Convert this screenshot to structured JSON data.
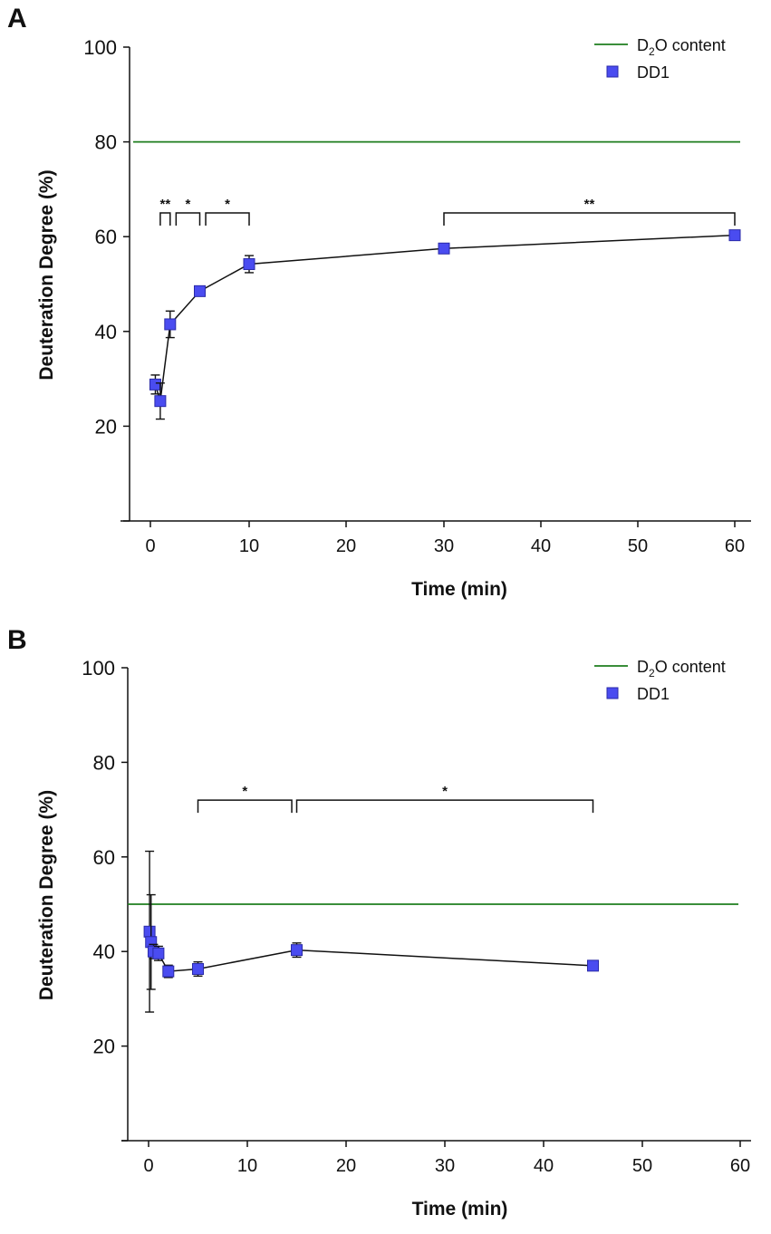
{
  "chart_data": [
    {
      "panel_label": "A",
      "type": "scatter",
      "title": "",
      "xlabel": "Time (min)",
      "ylabel": "Deuteration Degree (%)",
      "x_ticks": [
        "0",
        "10",
        "20",
        "30",
        "40",
        "50",
        "60"
      ],
      "y_ticks": [
        "20",
        "40",
        "60",
        "80",
        "100"
      ],
      "ylim": [
        0,
        100
      ],
      "reference_line": {
        "name": "D2O content",
        "legend_label_main": "D",
        "legend_label_sub": "2",
        "legend_label_rest": "O content",
        "y": 80,
        "color": "#1e7e1e"
      },
      "series": [
        {
          "name": "DD1",
          "color": "#4a4cf0",
          "points": [
            {
              "x": 0.5,
              "y": 28.8,
              "err": 2.0
            },
            {
              "x": 1,
              "y": 25.3,
              "err": 3.8
            },
            {
              "x": 2,
              "y": 41.5,
              "err": 2.8
            },
            {
              "x": 5,
              "y": 48.5,
              "err": 0.6
            },
            {
              "x": 10,
              "y": 54.2,
              "err": 1.8
            },
            {
              "x": 30,
              "y": 57.5,
              "err": 0.8
            },
            {
              "x": 60,
              "y": 60.3,
              "err": 0.8
            }
          ]
        }
      ],
      "significance": [
        {
          "x1": 1,
          "x2": 2,
          "y": 65,
          "label": "**"
        },
        {
          "x1": 2.6,
          "x2": 5,
          "y": 65,
          "label": "*"
        },
        {
          "x1": 5.6,
          "x2": 10,
          "y": 65,
          "label": "*"
        },
        {
          "x1": 30,
          "x2": 60,
          "y": 65,
          "label": "**"
        }
      ]
    },
    {
      "panel_label": "B",
      "type": "scatter",
      "title": "",
      "xlabel": "Time (min)",
      "ylabel": "Deuteration Degree (%)",
      "x_ticks": [
        "0",
        "10",
        "20",
        "30",
        "40",
        "50",
        "60"
      ],
      "y_ticks": [
        "20",
        "40",
        "60",
        "80",
        "100"
      ],
      "ylim": [
        0,
        100
      ],
      "reference_line": {
        "name": "D2O content",
        "legend_label_main": "D",
        "legend_label_sub": "2",
        "legend_label_rest": "O content",
        "y": 50,
        "color": "#1e7e1e"
      },
      "series": [
        {
          "name": "DD1",
          "color": "#4a4cf0",
          "points": [
            {
              "x": 0.1,
              "y": 44.2,
              "err": 17.0
            },
            {
              "x": 0.25,
              "y": 42.0,
              "err": 10.0
            },
            {
              "x": 0.5,
              "y": 40.0,
              "err": 1.5
            },
            {
              "x": 1,
              "y": 39.6,
              "err": 1.5
            },
            {
              "x": 2,
              "y": 35.8,
              "err": 1.3
            },
            {
              "x": 5,
              "y": 36.3,
              "err": 1.5
            },
            {
              "x": 15,
              "y": 40.3,
              "err": 1.5
            },
            {
              "x": 45,
              "y": 37.0,
              "err": 0.8
            }
          ]
        }
      ],
      "significance": [
        {
          "x1": 5,
          "x2": 14.5,
          "y": 72,
          "label": "*"
        },
        {
          "x1": 15,
          "x2": 45,
          "y": 72,
          "label": "*"
        }
      ]
    }
  ]
}
